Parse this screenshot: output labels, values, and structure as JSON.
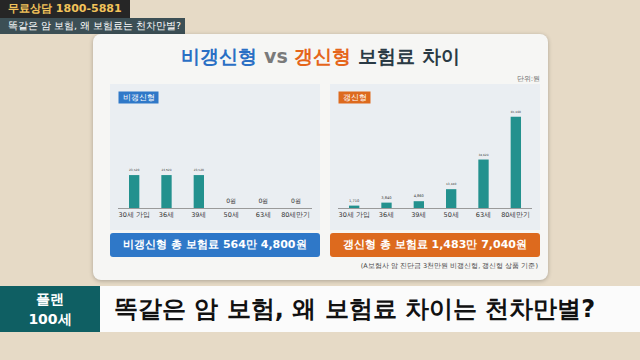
{
  "header": {
    "phone": "무료상담 1800-5881",
    "topic": "똑같은 암 보험, 왜 보험료는 천차만별?"
  },
  "title_parts": [
    {
      "text": "비갱신형",
      "color": "#2a6fc4"
    },
    {
      "text": " vs ",
      "color": "#7a7a7a"
    },
    {
      "text": "갱신형",
      "color": "#e5651a"
    },
    {
      "text": " 보험료 차이",
      "color": "#2a3a44"
    }
  ],
  "unit": "단위:원",
  "chart_data": [
    {
      "type": "bar",
      "title": "비갱신형",
      "categories": [
        "30세 가입",
        "36세",
        "39세",
        "50세",
        "63세",
        "80세만기"
      ],
      "values": [
        23520,
        23520,
        23520,
        0,
        0,
        0
      ],
      "value_labels": [
        "23,520",
        "23,520",
        "23,520",
        "0원",
        "0원",
        "0원"
      ],
      "color": "#23918e",
      "ylim": [
        0,
        70000
      ],
      "tick_labels": "x",
      "data_labels": true,
      "annotations": [
        "비갱신형 총 보험료 564만 4,800원"
      ]
    },
    {
      "type": "bar",
      "title": "갱신형",
      "categories": [
        "30세 가입",
        "36세",
        "39세",
        "50세",
        "63세",
        "80세만기"
      ],
      "values": [
        1710,
        3840,
        4860,
        13440,
        34620,
        65160
      ],
      "value_labels": [
        "1,710",
        "3,840",
        "4,860",
        "13,440",
        "34,620",
        "65,160"
      ],
      "color": "#23918e",
      "ylim": [
        0,
        70000
      ],
      "tick_labels": "x",
      "data_labels": true,
      "annotations": [
        "갱신형 총 보험료 1,483만 7,040원"
      ]
    }
  ],
  "footnote": "(A보험사 암 진단금 3천만원 비갱신형, 갱신형 상품 기준)",
  "banner": {
    "program": [
      "플랜",
      "100세"
    ],
    "headline": "똑같은 암 보험, 왜 보험료 차이는 천차만별?"
  }
}
